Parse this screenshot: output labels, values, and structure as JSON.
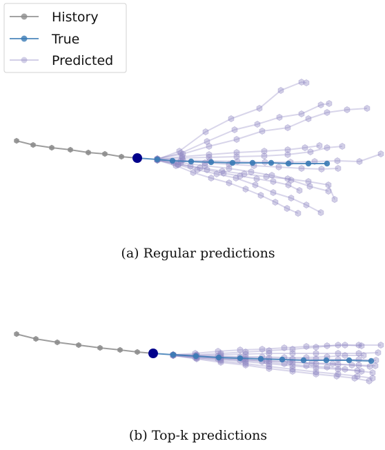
{
  "legend": {
    "entries": [
      {
        "label": "History",
        "color": "#8c8c8c"
      },
      {
        "label": "True",
        "color": "#3a7ab5"
      },
      {
        "label": "Predicted",
        "color": "#8f86c2"
      }
    ]
  },
  "captions": {
    "top": "(a) Regular predictions",
    "bottom": "(b) Top-k predictions"
  },
  "chart_data": [
    {
      "type": "scatter",
      "title": "",
      "axes": "off",
      "grid": false,
      "legend_position": "top-left",
      "colors": {
        "history": "#8c8c8c",
        "true": "#3a7ab5",
        "predicted": "#8f86c2",
        "current": "#00008b"
      },
      "history": [
        [
          24,
          204
        ],
        [
          48,
          210
        ],
        [
          75,
          214
        ],
        [
          102,
          217
        ],
        [
          128,
          221
        ],
        [
          152,
          223
        ],
        [
          176,
          227
        ],
        [
          199,
          229
        ]
      ],
      "current": [
        199,
        229
      ],
      "true": [
        [
          228,
          231
        ],
        [
          250,
          233
        ],
        [
          277,
          234
        ],
        [
          306,
          235
        ],
        [
          337,
          236
        ],
        [
          366,
          236
        ],
        [
          393,
          236
        ],
        [
          418,
          237
        ],
        [
          447,
          237
        ],
        [
          474,
          237
        ]
      ],
      "predicted": [
        [
          [
            228,
            231
          ],
          [
            260,
            219
          ],
          [
            298,
            191
          ],
          [
            335,
            172
          ],
          [
            376,
            157
          ],
          [
            407,
            131
          ],
          [
            437,
            119
          ],
          [
            444,
            120
          ]
        ],
        [
          [
            228,
            230
          ],
          [
            262,
            222
          ],
          [
            300,
            205
          ],
          [
            340,
            188
          ],
          [
            373,
            180
          ],
          [
            405,
            170
          ],
          [
            437,
            165
          ],
          [
            465,
            152
          ],
          [
            477,
            150
          ]
        ],
        [
          [
            228,
            230
          ],
          [
            265,
            223
          ],
          [
            303,
            212
          ],
          [
            343,
            202
          ],
          [
            380,
            190
          ],
          [
            417,
            185
          ],
          [
            447,
            172
          ],
          [
            474,
            163
          ],
          [
            503,
            159
          ],
          [
            532,
            157
          ]
        ],
        [
          [
            228,
            231
          ],
          [
            264,
            227
          ],
          [
            303,
            224
          ],
          [
            343,
            221
          ],
          [
            383,
            219
          ],
          [
            417,
            217
          ],
          [
            442,
            214
          ],
          [
            463,
            211
          ]
        ],
        [
          [
            228,
            231
          ],
          [
            264,
            229
          ],
          [
            303,
            228
          ],
          [
            343,
            227
          ],
          [
            383,
            226
          ],
          [
            417,
            224
          ],
          [
            450,
            220
          ],
          [
            474,
            214
          ],
          [
            496,
            212
          ]
        ],
        [
          [
            228,
            231
          ],
          [
            265,
            232
          ],
          [
            304,
            233
          ],
          [
            344,
            234
          ],
          [
            384,
            235
          ],
          [
            421,
            235
          ],
          [
            456,
            234
          ],
          [
            489,
            233
          ],
          [
            521,
            234
          ],
          [
            552,
            223
          ]
        ],
        [
          [
            228,
            232
          ],
          [
            262,
            236
          ],
          [
            297,
            240
          ],
          [
            332,
            244
          ],
          [
            364,
            249
          ],
          [
            394,
            254
          ],
          [
            422,
            261
          ],
          [
            449,
            270
          ],
          [
            476,
            277
          ]
        ],
        [
          [
            228,
            232
          ],
          [
            258,
            239
          ],
          [
            286,
            246
          ],
          [
            314,
            252
          ],
          [
            342,
            258
          ],
          [
            370,
            268
          ],
          [
            396,
            279
          ],
          [
            422,
            287
          ],
          [
            444,
            297
          ],
          [
            465,
            308
          ]
        ],
        [
          [
            228,
            232
          ],
          [
            255,
            240
          ],
          [
            280,
            250
          ],
          [
            306,
            258
          ],
          [
            332,
            265
          ],
          [
            356,
            274
          ],
          [
            378,
            283
          ],
          [
            399,
            293
          ],
          [
            416,
            302
          ],
          [
            432,
            309
          ]
        ],
        [
          [
            228,
            232
          ],
          [
            258,
            238
          ],
          [
            290,
            243
          ],
          [
            322,
            248
          ],
          [
            354,
            252
          ],
          [
            386,
            256
          ],
          [
            417,
            259
          ],
          [
            447,
            263
          ],
          [
            476,
            268
          ],
          [
            485,
            289
          ]
        ],
        [
          [
            228,
            231
          ],
          [
            262,
            233
          ],
          [
            297,
            236
          ],
          [
            332,
            238
          ],
          [
            368,
            240
          ],
          [
            404,
            242
          ],
          [
            437,
            244
          ],
          [
            466,
            245
          ],
          [
            490,
            244
          ]
        ],
        [
          [
            228,
            232
          ],
          [
            252,
            236
          ],
          [
            276,
            241
          ],
          [
            300,
            246
          ],
          [
            324,
            251
          ],
          [
            348,
            255
          ],
          [
            372,
            259
          ],
          [
            396,
            263
          ],
          [
            418,
            268
          ],
          [
            434,
            276
          ]
        ]
      ]
    },
    {
      "type": "scatter",
      "title": "",
      "axes": "off",
      "grid": false,
      "colors": {
        "history": "#8c8c8c",
        "true": "#3a7ab5",
        "predicted": "#8f86c2",
        "current": "#00008b"
      },
      "history": [
        [
          24,
          484
        ],
        [
          52,
          491
        ],
        [
          83,
          496
        ],
        [
          114,
          500
        ],
        [
          145,
          504
        ],
        [
          174,
          507
        ],
        [
          199,
          510
        ],
        [
          222,
          512
        ]
      ],
      "current": [
        222,
        512
      ],
      "true": [
        [
          251,
          514
        ],
        [
          284,
          516
        ],
        [
          317,
          518
        ],
        [
          348,
          519
        ],
        [
          378,
          520
        ],
        [
          409,
          521
        ],
        [
          440,
          522
        ],
        [
          473,
          522
        ],
        [
          506,
          522
        ],
        [
          538,
          523
        ]
      ],
      "predicted": [
        [
          [
            251,
            514
          ],
          [
            285,
            514
          ],
          [
            320,
            512
          ],
          [
            356,
            510
          ],
          [
            390,
            508
          ],
          [
            424,
            506
          ],
          [
            458,
            503
          ],
          [
            490,
            500
          ],
          [
            520,
            500
          ],
          [
            552,
            500
          ]
        ],
        [
          [
            251,
            514
          ],
          [
            285,
            515
          ],
          [
            320,
            514
          ],
          [
            356,
            513
          ],
          [
            390,
            512
          ],
          [
            424,
            512
          ],
          [
            458,
            512
          ],
          [
            490,
            512
          ],
          [
            520,
            512
          ],
          [
            548,
            511
          ]
        ],
        [
          [
            251,
            514
          ],
          [
            285,
            516
          ],
          [
            320,
            517
          ],
          [
            356,
            518
          ],
          [
            390,
            519
          ],
          [
            424,
            520
          ],
          [
            458,
            520
          ],
          [
            490,
            521
          ],
          [
            520,
            521
          ],
          [
            545,
            522
          ]
        ],
        [
          [
            251,
            514
          ],
          [
            285,
            517
          ],
          [
            320,
            519
          ],
          [
            356,
            521
          ],
          [
            390,
            523
          ],
          [
            424,
            525
          ],
          [
            458,
            527
          ],
          [
            490,
            528
          ],
          [
            520,
            529
          ],
          [
            544,
            530
          ]
        ],
        [
          [
            251,
            515
          ],
          [
            285,
            518
          ],
          [
            320,
            521
          ],
          [
            356,
            524
          ],
          [
            390,
            527
          ],
          [
            424,
            530
          ],
          [
            458,
            533
          ],
          [
            490,
            535
          ],
          [
            518,
            537
          ],
          [
            540,
            540
          ]
        ],
        [
          [
            251,
            515
          ],
          [
            285,
            519
          ],
          [
            320,
            523
          ],
          [
            356,
            527
          ],
          [
            390,
            531
          ],
          [
            424,
            535
          ],
          [
            458,
            539
          ],
          [
            490,
            542
          ],
          [
            518,
            545
          ],
          [
            540,
            548
          ]
        ],
        [
          [
            251,
            515
          ],
          [
            285,
            520
          ],
          [
            320,
            525
          ],
          [
            356,
            529
          ],
          [
            390,
            534
          ],
          [
            424,
            538
          ],
          [
            458,
            542
          ],
          [
            488,
            545
          ],
          [
            514,
            548
          ],
          [
            535,
            552
          ]
        ],
        [
          [
            251,
            514
          ],
          [
            283,
            515
          ],
          [
            316,
            516
          ],
          [
            348,
            517
          ],
          [
            380,
            517
          ],
          [
            412,
            518
          ],
          [
            444,
            518
          ],
          [
            474,
            517
          ],
          [
            500,
            515
          ],
          [
            527,
            515
          ]
        ],
        [
          [
            251,
            514
          ],
          [
            283,
            512
          ],
          [
            316,
            509
          ],
          [
            348,
            507
          ],
          [
            380,
            506
          ],
          [
            412,
            504
          ],
          [
            444,
            502
          ],
          [
            474,
            501
          ],
          [
            500,
            500
          ],
          [
            524,
            501
          ]
        ],
        [
          [
            251,
            515
          ],
          [
            283,
            518
          ],
          [
            316,
            520
          ],
          [
            348,
            522
          ],
          [
            380,
            524
          ],
          [
            412,
            527
          ],
          [
            444,
            530
          ],
          [
            474,
            532
          ],
          [
            500,
            535
          ],
          [
            524,
            538
          ]
        ],
        [
          [
            251,
            514
          ],
          [
            284,
            516
          ],
          [
            318,
            519
          ],
          [
            352,
            521
          ],
          [
            386,
            523
          ],
          [
            420,
            524
          ],
          [
            452,
            526
          ],
          [
            482,
            527
          ],
          [
            510,
            529
          ],
          [
            536,
            531
          ]
        ]
      ]
    }
  ]
}
